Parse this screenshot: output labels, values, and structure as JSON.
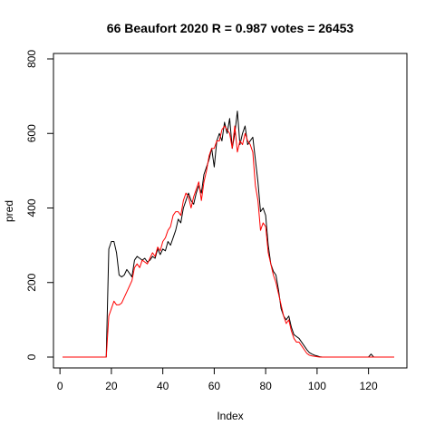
{
  "chart_data": {
    "type": "line",
    "title": "66 Beaufort 2020 R = 0.987 votes = 26453",
    "xlabel": "Index",
    "ylabel": "pred",
    "xlim": [
      1,
      130
    ],
    "ylim": [
      0,
      800
    ],
    "x_ticks": [
      0,
      20,
      40,
      60,
      80,
      100,
      120
    ],
    "y_ticks": [
      0,
      200,
      400,
      600,
      800
    ],
    "grid": false,
    "colors": {
      "actual": "#000000",
      "pred": "#ff0000"
    },
    "series": [
      {
        "key": "actual",
        "color": "#000000",
        "values": [
          0,
          0,
          0,
          0,
          0,
          0,
          0,
          0,
          0,
          0,
          0,
          0,
          0,
          0,
          0,
          0,
          0,
          0,
          290,
          310,
          310,
          280,
          220,
          215,
          220,
          235,
          225,
          215,
          260,
          270,
          265,
          260,
          265,
          255,
          260,
          270,
          265,
          290,
          275,
          290,
          285,
          310,
          300,
          320,
          340,
          370,
          360,
          400,
          420,
          440,
          420,
          410,
          440,
          460,
          440,
          490,
          510,
          530,
          560,
          510,
          580,
          600,
          580,
          630,
          600,
          640,
          560,
          600,
          660,
          570,
          600,
          620,
          570,
          580,
          590,
          530,
          470,
          390,
          400,
          380,
          300,
          250,
          230,
          220,
          180,
          130,
          110,
          100,
          110,
          80,
          60,
          55,
          50,
          40,
          30,
          20,
          12,
          8,
          5,
          3,
          1,
          0,
          0,
          0,
          0,
          0,
          0,
          0,
          0,
          0,
          0,
          0,
          0,
          0,
          0,
          0,
          0,
          0,
          0,
          0,
          8,
          0,
          0,
          0,
          0,
          0,
          0,
          0,
          0,
          0
        ]
      },
      {
        "key": "pred",
        "color": "#ff0000",
        "values": [
          0,
          0,
          0,
          0,
          0,
          0,
          0,
          0,
          0,
          0,
          0,
          0,
          0,
          0,
          0,
          0,
          0,
          0,
          110,
          130,
          150,
          140,
          140,
          145,
          160,
          175,
          190,
          205,
          240,
          250,
          240,
          260,
          255,
          250,
          265,
          280,
          270,
          295,
          285,
          310,
          320,
          340,
          350,
          380,
          390,
          390,
          380,
          420,
          440,
          430,
          400,
          430,
          450,
          470,
          420,
          470,
          500,
          540,
          560,
          560,
          580,
          580,
          610,
          620,
          610,
          600,
          560,
          620,
          550,
          580,
          570,
          600,
          580,
          570,
          550,
          460,
          420,
          340,
          360,
          350,
          280,
          250,
          220,
          200,
          170,
          140,
          110,
          90,
          100,
          70,
          50,
          40,
          40,
          30,
          20,
          10,
          5,
          3,
          2,
          1,
          0,
          0,
          0,
          0,
          0,
          0,
          0,
          0,
          0,
          0,
          0,
          0,
          0,
          0,
          0,
          0,
          0,
          0,
          0,
          0,
          0,
          0,
          0,
          0,
          0,
          0,
          0,
          0,
          0,
          0
        ]
      }
    ]
  }
}
